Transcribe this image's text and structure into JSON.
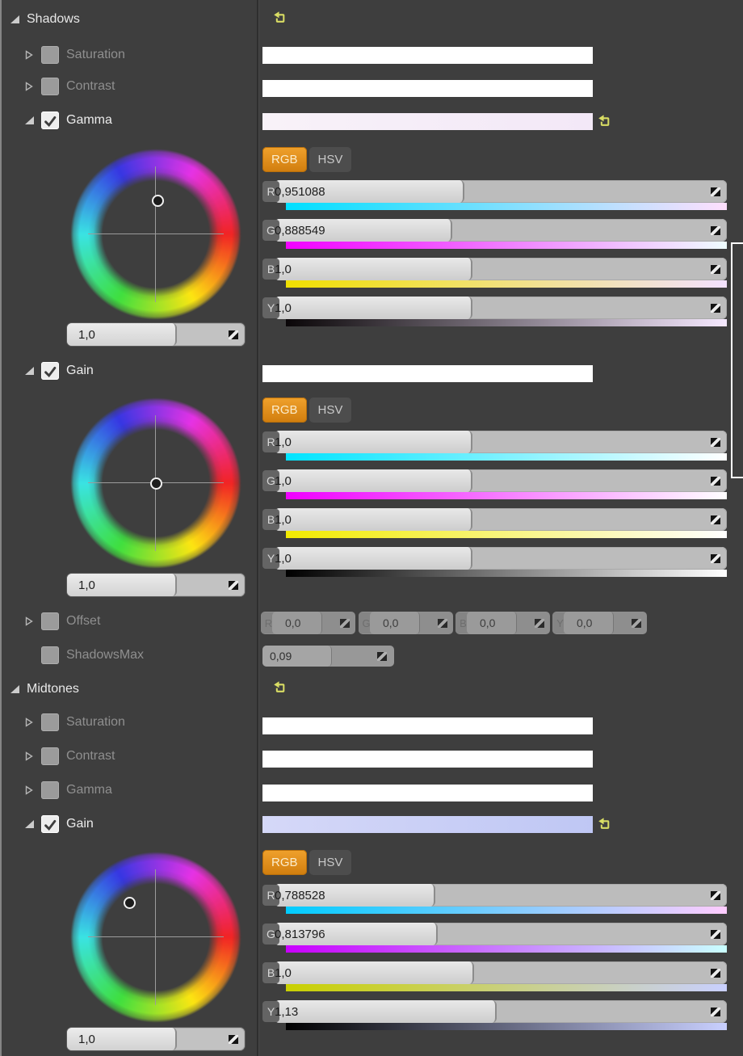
{
  "tabs": {
    "rgb": "RGB",
    "hsv": "HSV"
  },
  "colors": {
    "panel_bg": "#3e3e3e",
    "accent_orange": "#e0891a",
    "reset_icon_yellow": "#d9dd64",
    "slider_track": "#bcbcbc",
    "slider_fill": "#d9d9d9",
    "text_bright": "#ececec",
    "text_dim": "#8f8f8f"
  },
  "icons": {
    "reset": "reset-to-default-arrow",
    "spin": "diagonal-drag-arrows",
    "expanded": "filled-corner-triangle",
    "collapsed": "hollow-right-triangle",
    "check": "checkmark"
  },
  "shadows": {
    "title": "Shadows",
    "saturation": {
      "label": "Saturation",
      "bar": [
        "#ffffff",
        "#ffffff"
      ]
    },
    "contrast": {
      "label": "Contrast",
      "bar": [
        "#ffffff",
        "#ffffff"
      ]
    },
    "gamma": {
      "label": "Gamma",
      "bar": [
        "#f8f2f8",
        "#f3e8f7"
      ],
      "wheel_value": "1,0",
      "wheel_fill": 61,
      "sliders": [
        {
          "ch": "R",
          "value": "0,951088",
          "fill": 41.6,
          "grad": [
            "#00dfff",
            "#ffdffd"
          ]
        },
        {
          "ch": "G",
          "value": "0,888549",
          "fill": 38.9,
          "grad": [
            "#f200ff",
            "#effdff"
          ]
        },
        {
          "ch": "B",
          "value": "1,0",
          "fill": 43.4,
          "grad": [
            "#f0e000",
            "#f3e2ff"
          ]
        },
        {
          "ch": "Y",
          "value": "1,0",
          "fill": 43.4,
          "grad": [
            "#0a0608",
            "#f6e9ff"
          ]
        }
      ]
    },
    "gain": {
      "label": "Gain",
      "bar": [
        "#ffffff",
        "#ffffff"
      ],
      "wheel_value": "1,0",
      "wheel_fill": 61,
      "sliders": [
        {
          "ch": "R",
          "value": "1,0",
          "fill": 43.4,
          "grad": [
            "#00e4ff",
            "#ffffff"
          ]
        },
        {
          "ch": "G",
          "value": "1,0",
          "fill": 43.4,
          "grad": [
            "#ef00ff",
            "#ffffff"
          ]
        },
        {
          "ch": "B",
          "value": "1,0",
          "fill": 43.4,
          "grad": [
            "#f2ea00",
            "#ffffff"
          ]
        },
        {
          "ch": "Y",
          "value": "1,0",
          "fill": 43.4,
          "grad": [
            "#000000",
            "#ffffff"
          ]
        }
      ]
    },
    "offset": {
      "label": "Offset",
      "sliders": [
        {
          "ch": "R",
          "value": "0,0"
        },
        {
          "ch": "G",
          "value": "0,0"
        },
        {
          "ch": "B",
          "value": "0,0"
        },
        {
          "ch": "Y",
          "value": "0,0"
        }
      ]
    },
    "shadows_max": {
      "label": "ShadowsMax",
      "value": "0,09"
    }
  },
  "midtones": {
    "title": "Midtones",
    "saturation": {
      "label": "Saturation",
      "bar": [
        "#ffffff",
        "#ffffff"
      ]
    },
    "contrast": {
      "label": "Contrast",
      "bar": [
        "#ffffff",
        "#ffffff"
      ]
    },
    "gamma": {
      "label": "Gamma",
      "bar": [
        "#ffffff",
        "#ffffff"
      ]
    },
    "gain": {
      "label": "Gain",
      "bar": [
        "#d5d8f8",
        "#bfc7f4"
      ],
      "wheel_value": "1,0",
      "wheel_fill": 61,
      "sliders": [
        {
          "ch": "R",
          "value": "0,788528",
          "fill": 35.2,
          "grad": [
            "#00ccff",
            "#ffccff"
          ]
        },
        {
          "ch": "G",
          "value": "0,813796",
          "fill": 35.7,
          "grad": [
            "#c900ff",
            "#c9ffff"
          ]
        },
        {
          "ch": "B",
          "value": "1,0",
          "fill": 43.8,
          "grad": [
            "#c9d000",
            "#c9d0ff"
          ]
        },
        {
          "ch": "Y",
          "value": "1,13",
          "fill": 48.8,
          "grad": [
            "#000000",
            "#c9d0ff"
          ]
        }
      ]
    }
  }
}
